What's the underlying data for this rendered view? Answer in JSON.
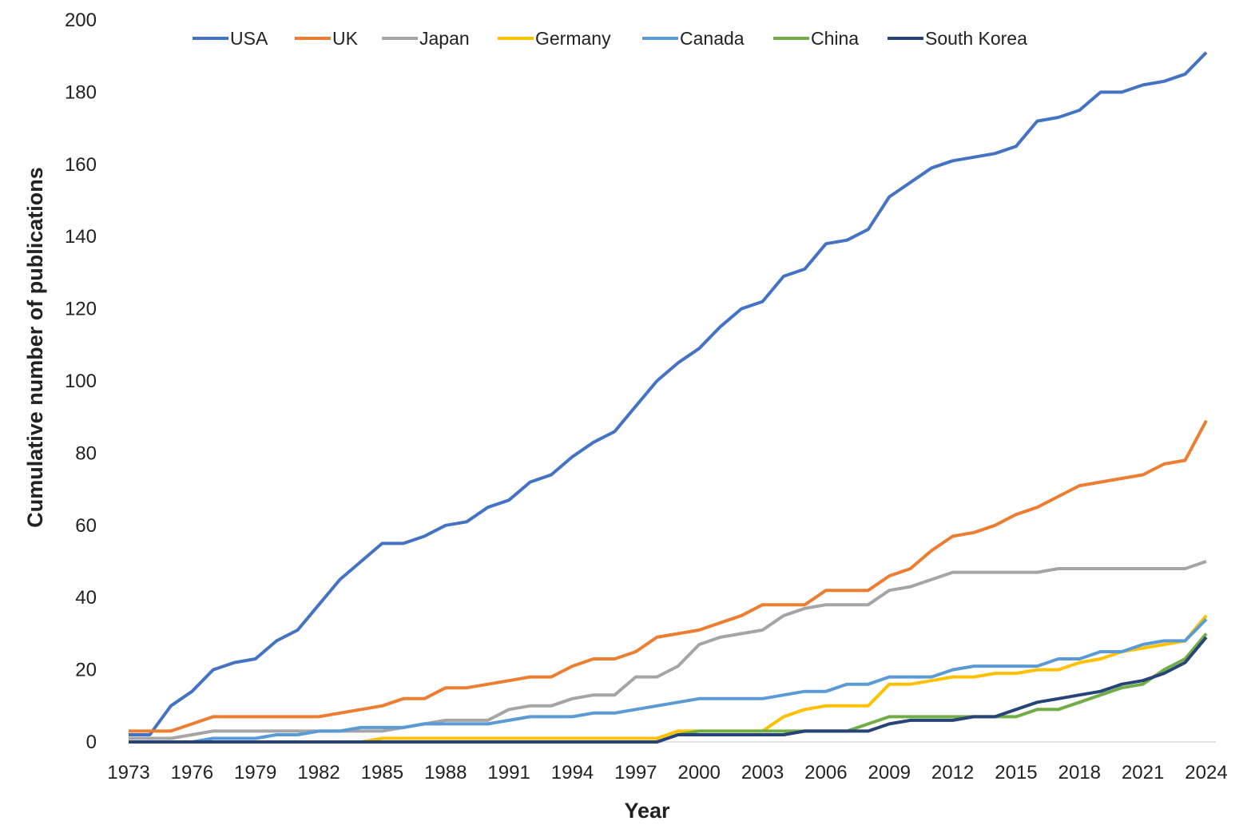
{
  "chart_data": {
    "type": "line",
    "title": "",
    "xlabel": "Year",
    "ylabel": "Cumulative number of publications",
    "xlim": [
      1973,
      2024
    ],
    "ylim": [
      0,
      200
    ],
    "yticks": [
      0,
      20,
      40,
      60,
      80,
      100,
      120,
      140,
      160,
      180,
      200
    ],
    "xticks": [
      1973,
      1976,
      1979,
      1982,
      1985,
      1988,
      1991,
      1994,
      1997,
      2000,
      2003,
      2006,
      2009,
      2012,
      2015,
      2018,
      2021,
      2024
    ],
    "grid": false,
    "legend_position": "top",
    "x_start": 1973,
    "series": [
      {
        "name": "USA",
        "color": "#4472C4",
        "values": [
          2,
          2,
          10,
          14,
          20,
          22,
          23,
          28,
          31,
          38,
          45,
          50,
          55,
          55,
          57,
          60,
          61,
          65,
          67,
          72,
          74,
          79,
          83,
          86,
          93,
          100,
          105,
          109,
          115,
          120,
          122,
          129,
          131,
          138,
          139,
          142,
          151,
          155,
          159,
          161,
          162,
          163,
          165,
          172,
          173,
          175,
          180,
          180,
          182,
          183,
          185,
          191
        ]
      },
      {
        "name": "UK",
        "color": "#ED7D31",
        "values": [
          3,
          3,
          3,
          5,
          7,
          7,
          7,
          7,
          7,
          7,
          8,
          9,
          10,
          12,
          12,
          15,
          15,
          16,
          17,
          18,
          18,
          21,
          23,
          23,
          25,
          29,
          30,
          31,
          33,
          35,
          38,
          38,
          38,
          42,
          42,
          42,
          46,
          48,
          53,
          57,
          58,
          60,
          63,
          65,
          68,
          71,
          72,
          73,
          74,
          77,
          78,
          89
        ]
      },
      {
        "name": "Japan",
        "color": "#A5A5A5",
        "values": [
          1,
          1,
          1,
          2,
          3,
          3,
          3,
          3,
          3,
          3,
          3,
          3,
          3,
          4,
          5,
          6,
          6,
          6,
          9,
          10,
          10,
          12,
          13,
          13,
          18,
          18,
          21,
          27,
          29,
          30,
          31,
          35,
          37,
          38,
          38,
          38,
          42,
          43,
          45,
          47,
          47,
          47,
          47,
          47,
          48,
          48,
          48,
          48,
          48,
          48,
          48,
          50
        ]
      },
      {
        "name": "Germany",
        "color": "#FFC000",
        "values": [
          0,
          0,
          0,
          0,
          0,
          0,
          0,
          0,
          0,
          0,
          0,
          0,
          1,
          1,
          1,
          1,
          1,
          1,
          1,
          1,
          1,
          1,
          1,
          1,
          1,
          1,
          3,
          3,
          3,
          3,
          3,
          7,
          9,
          10,
          10,
          10,
          16,
          16,
          17,
          18,
          18,
          19,
          19,
          20,
          20,
          22,
          23,
          25,
          26,
          27,
          28,
          35
        ]
      },
      {
        "name": "Canada",
        "color": "#5B9BD5",
        "values": [
          0,
          0,
          0,
          0,
          1,
          1,
          1,
          2,
          2,
          3,
          3,
          4,
          4,
          4,
          5,
          5,
          5,
          5,
          6,
          7,
          7,
          7,
          8,
          8,
          9,
          10,
          11,
          12,
          12,
          12,
          12,
          13,
          14,
          14,
          16,
          16,
          18,
          18,
          18,
          20,
          21,
          21,
          21,
          21,
          23,
          23,
          25,
          25,
          27,
          28,
          28,
          34
        ]
      },
      {
        "name": "China",
        "color": "#70AD47",
        "values": [
          0,
          0,
          0,
          0,
          0,
          0,
          0,
          0,
          0,
          0,
          0,
          0,
          0,
          0,
          0,
          0,
          0,
          0,
          0,
          0,
          0,
          0,
          0,
          0,
          0,
          0,
          2,
          3,
          3,
          3,
          3,
          3,
          3,
          3,
          3,
          5,
          7,
          7,
          7,
          7,
          7,
          7,
          7,
          9,
          9,
          11,
          13,
          15,
          16,
          20,
          23,
          30
        ]
      },
      {
        "name": "South Korea",
        "color": "#264478",
        "values": [
          0,
          0,
          0,
          0,
          0,
          0,
          0,
          0,
          0,
          0,
          0,
          0,
          0,
          0,
          0,
          0,
          0,
          0,
          0,
          0,
          0,
          0,
          0,
          0,
          0,
          0,
          2,
          2,
          2,
          2,
          2,
          2,
          3,
          3,
          3,
          3,
          5,
          6,
          6,
          6,
          7,
          7,
          9,
          11,
          12,
          13,
          14,
          16,
          17,
          19,
          22,
          29
        ]
      }
    ]
  }
}
